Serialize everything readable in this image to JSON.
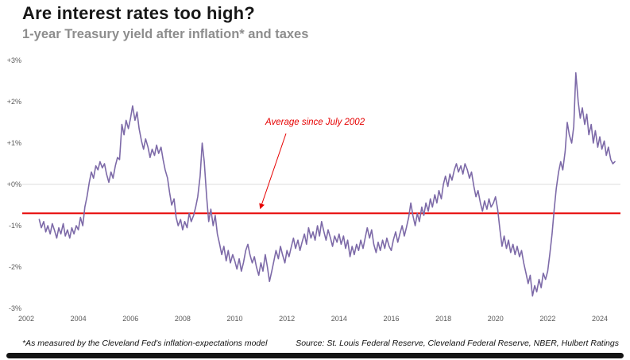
{
  "header": {
    "title": "Are interest rates too high?",
    "subtitle": "1-year Treasury yield after inflation* and taxes"
  },
  "footer": {
    "footnote": "*As measured by the Cleveland Fed's inflation-expectations model",
    "source": "Source: St. Louis Federal Reserve, Cleveland Federal Reserve, NBER, Hulbert Ratings"
  },
  "chart_data": {
    "type": "line",
    "title": "Are interest rates too high?",
    "subtitle": "1-year Treasury yield after inflation* and taxes",
    "xlabel": "",
    "ylabel": "1-year Treasury yield after inflation and taxes (%)",
    "xlim": [
      2002,
      2024
    ],
    "ylim": [
      -3,
      3
    ],
    "grid": "horizontal line at 0% only",
    "legend": "none",
    "colors": {
      "line": "#7d6aa8",
      "average": "#e60000",
      "grid": "#dcdcdc",
      "tick": "#595959"
    },
    "yticks": [
      {
        "value": 3,
        "label": "+3%"
      },
      {
        "value": 2,
        "label": "+2%"
      },
      {
        "value": 1,
        "label": "+1%"
      },
      {
        "value": 0,
        "label": "+0%"
      },
      {
        "value": -1,
        "label": "-1%"
      },
      {
        "value": -2,
        "label": "-2%"
      },
      {
        "value": -3,
        "label": "-3%"
      }
    ],
    "xticks": [
      2002,
      2004,
      2006,
      2008,
      2010,
      2012,
      2014,
      2016,
      2018,
      2020,
      2022,
      2024
    ],
    "average_line": {
      "value": -0.7,
      "label": "Average since July 2002"
    },
    "series": [
      {
        "name": "1-year Treasury yield after inflation and taxes",
        "points": [
          [
            2002.5,
            -0.85
          ],
          [
            2002.58,
            -1.05
          ],
          [
            2002.67,
            -0.9
          ],
          [
            2002.75,
            -1.15
          ],
          [
            2002.83,
            -1.0
          ],
          [
            2002.92,
            -1.2
          ],
          [
            2003.0,
            -0.95
          ],
          [
            2003.08,
            -1.1
          ],
          [
            2003.17,
            -1.3
          ],
          [
            2003.25,
            -1.05
          ],
          [
            2003.33,
            -1.2
          ],
          [
            2003.42,
            -0.95
          ],
          [
            2003.5,
            -1.25
          ],
          [
            2003.58,
            -1.1
          ],
          [
            2003.67,
            -1.3
          ],
          [
            2003.75,
            -1.05
          ],
          [
            2003.83,
            -1.2
          ],
          [
            2003.92,
            -1.0
          ],
          [
            2004.0,
            -1.1
          ],
          [
            2004.08,
            -0.8
          ],
          [
            2004.17,
            -1.0
          ],
          [
            2004.25,
            -0.55
          ],
          [
            2004.33,
            -0.3
          ],
          [
            2004.42,
            0.05
          ],
          [
            2004.5,
            0.3
          ],
          [
            2004.58,
            0.15
          ],
          [
            2004.67,
            0.45
          ],
          [
            2004.75,
            0.35
          ],
          [
            2004.83,
            0.55
          ],
          [
            2004.92,
            0.4
          ],
          [
            2005.0,
            0.5
          ],
          [
            2005.08,
            0.25
          ],
          [
            2005.17,
            0.05
          ],
          [
            2005.25,
            0.3
          ],
          [
            2005.33,
            0.15
          ],
          [
            2005.42,
            0.45
          ],
          [
            2005.5,
            0.65
          ],
          [
            2005.58,
            0.6
          ],
          [
            2005.67,
            1.45
          ],
          [
            2005.75,
            1.2
          ],
          [
            2005.83,
            1.55
          ],
          [
            2005.92,
            1.35
          ],
          [
            2006.0,
            1.6
          ],
          [
            2006.08,
            1.9
          ],
          [
            2006.17,
            1.55
          ],
          [
            2006.25,
            1.75
          ],
          [
            2006.33,
            1.35
          ],
          [
            2006.42,
            1.05
          ],
          [
            2006.5,
            0.85
          ],
          [
            2006.58,
            1.1
          ],
          [
            2006.67,
            0.9
          ],
          [
            2006.75,
            0.65
          ],
          [
            2006.83,
            0.85
          ],
          [
            2006.92,
            0.7
          ],
          [
            2007.0,
            0.95
          ],
          [
            2007.08,
            0.75
          ],
          [
            2007.17,
            0.9
          ],
          [
            2007.25,
            0.6
          ],
          [
            2007.33,
            0.35
          ],
          [
            2007.42,
            0.15
          ],
          [
            2007.5,
            -0.2
          ],
          [
            2007.58,
            -0.5
          ],
          [
            2007.67,
            -0.35
          ],
          [
            2007.75,
            -0.8
          ],
          [
            2007.83,
            -1.0
          ],
          [
            2007.92,
            -0.85
          ],
          [
            2008.0,
            -1.1
          ],
          [
            2008.08,
            -0.9
          ],
          [
            2008.17,
            -1.05
          ],
          [
            2008.25,
            -0.7
          ],
          [
            2008.33,
            -0.9
          ],
          [
            2008.42,
            -0.75
          ],
          [
            2008.5,
            -0.55
          ],
          [
            2008.58,
            -0.3
          ],
          [
            2008.67,
            0.2
          ],
          [
            2008.75,
            1.0
          ],
          [
            2008.83,
            0.55
          ],
          [
            2008.92,
            -0.3
          ],
          [
            2009.0,
            -0.9
          ],
          [
            2009.08,
            -0.6
          ],
          [
            2009.17,
            -1.0
          ],
          [
            2009.25,
            -0.75
          ],
          [
            2009.33,
            -1.2
          ],
          [
            2009.42,
            -1.45
          ],
          [
            2009.5,
            -1.7
          ],
          [
            2009.58,
            -1.5
          ],
          [
            2009.67,
            -1.85
          ],
          [
            2009.75,
            -1.6
          ],
          [
            2009.83,
            -1.9
          ],
          [
            2009.92,
            -1.7
          ],
          [
            2010.0,
            -1.85
          ],
          [
            2010.08,
            -2.05
          ],
          [
            2010.17,
            -1.8
          ],
          [
            2010.25,
            -2.1
          ],
          [
            2010.33,
            -1.9
          ],
          [
            2010.42,
            -1.6
          ],
          [
            2010.5,
            -1.45
          ],
          [
            2010.58,
            -1.7
          ],
          [
            2010.67,
            -1.9
          ],
          [
            2010.75,
            -1.75
          ],
          [
            2010.83,
            -2.0
          ],
          [
            2010.92,
            -2.2
          ],
          [
            2011.0,
            -1.9
          ],
          [
            2011.08,
            -2.1
          ],
          [
            2011.17,
            -1.7
          ],
          [
            2011.25,
            -2.0
          ],
          [
            2011.33,
            -2.35
          ],
          [
            2011.42,
            -2.1
          ],
          [
            2011.5,
            -1.85
          ],
          [
            2011.58,
            -1.6
          ],
          [
            2011.67,
            -1.8
          ],
          [
            2011.75,
            -1.5
          ],
          [
            2011.83,
            -1.7
          ],
          [
            2011.92,
            -1.9
          ],
          [
            2012.0,
            -1.6
          ],
          [
            2012.08,
            -1.75
          ],
          [
            2012.17,
            -1.5
          ],
          [
            2012.25,
            -1.3
          ],
          [
            2012.33,
            -1.55
          ],
          [
            2012.42,
            -1.35
          ],
          [
            2012.5,
            -1.6
          ],
          [
            2012.58,
            -1.4
          ],
          [
            2012.67,
            -1.2
          ],
          [
            2012.75,
            -1.45
          ],
          [
            2012.83,
            -1.05
          ],
          [
            2012.92,
            -1.3
          ],
          [
            2013.0,
            -1.15
          ],
          [
            2013.08,
            -1.35
          ],
          [
            2013.17,
            -1.0
          ],
          [
            2013.25,
            -1.25
          ],
          [
            2013.33,
            -0.9
          ],
          [
            2013.42,
            -1.15
          ],
          [
            2013.5,
            -1.35
          ],
          [
            2013.58,
            -1.1
          ],
          [
            2013.67,
            -1.3
          ],
          [
            2013.75,
            -1.5
          ],
          [
            2013.83,
            -1.25
          ],
          [
            2013.92,
            -1.4
          ],
          [
            2014.0,
            -1.2
          ],
          [
            2014.08,
            -1.45
          ],
          [
            2014.17,
            -1.25
          ],
          [
            2014.25,
            -1.55
          ],
          [
            2014.33,
            -1.35
          ],
          [
            2014.42,
            -1.75
          ],
          [
            2014.5,
            -1.5
          ],
          [
            2014.58,
            -1.7
          ],
          [
            2014.67,
            -1.45
          ],
          [
            2014.75,
            -1.6
          ],
          [
            2014.83,
            -1.35
          ],
          [
            2014.92,
            -1.55
          ],
          [
            2015.0,
            -1.3
          ],
          [
            2015.08,
            -1.05
          ],
          [
            2015.17,
            -1.3
          ],
          [
            2015.25,
            -1.1
          ],
          [
            2015.33,
            -1.45
          ],
          [
            2015.42,
            -1.65
          ],
          [
            2015.5,
            -1.4
          ],
          [
            2015.58,
            -1.6
          ],
          [
            2015.67,
            -1.35
          ],
          [
            2015.75,
            -1.55
          ],
          [
            2015.83,
            -1.3
          ],
          [
            2015.92,
            -1.5
          ],
          [
            2016.0,
            -1.6
          ],
          [
            2016.08,
            -1.35
          ],
          [
            2016.17,
            -1.15
          ],
          [
            2016.25,
            -1.4
          ],
          [
            2016.33,
            -1.2
          ],
          [
            2016.42,
            -1.0
          ],
          [
            2016.5,
            -1.25
          ],
          [
            2016.58,
            -1.05
          ],
          [
            2016.67,
            -0.8
          ],
          [
            2016.75,
            -0.45
          ],
          [
            2016.83,
            -0.75
          ],
          [
            2016.92,
            -1.0
          ],
          [
            2017.0,
            -0.7
          ],
          [
            2017.08,
            -0.9
          ],
          [
            2017.17,
            -0.55
          ],
          [
            2017.25,
            -0.75
          ],
          [
            2017.33,
            -0.45
          ],
          [
            2017.42,
            -0.65
          ],
          [
            2017.5,
            -0.35
          ],
          [
            2017.58,
            -0.55
          ],
          [
            2017.67,
            -0.25
          ],
          [
            2017.75,
            -0.45
          ],
          [
            2017.83,
            -0.15
          ],
          [
            2017.92,
            -0.35
          ],
          [
            2018.0,
            0.0
          ],
          [
            2018.08,
            0.2
          ],
          [
            2018.17,
            -0.05
          ],
          [
            2018.25,
            0.25
          ],
          [
            2018.33,
            0.1
          ],
          [
            2018.42,
            0.35
          ],
          [
            2018.5,
            0.5
          ],
          [
            2018.58,
            0.3
          ],
          [
            2018.67,
            0.45
          ],
          [
            2018.75,
            0.25
          ],
          [
            2018.83,
            0.5
          ],
          [
            2018.92,
            0.35
          ],
          [
            2019.0,
            0.15
          ],
          [
            2019.08,
            0.3
          ],
          [
            2019.17,
            -0.05
          ],
          [
            2019.25,
            -0.3
          ],
          [
            2019.33,
            -0.15
          ],
          [
            2019.42,
            -0.45
          ],
          [
            2019.5,
            -0.65
          ],
          [
            2019.58,
            -0.4
          ],
          [
            2019.67,
            -0.6
          ],
          [
            2019.75,
            -0.35
          ],
          [
            2019.83,
            -0.55
          ],
          [
            2019.92,
            -0.45
          ],
          [
            2020.0,
            -0.3
          ],
          [
            2020.08,
            -0.6
          ],
          [
            2020.17,
            -1.1
          ],
          [
            2020.25,
            -1.5
          ],
          [
            2020.33,
            -1.25
          ],
          [
            2020.42,
            -1.55
          ],
          [
            2020.5,
            -1.35
          ],
          [
            2020.58,
            -1.65
          ],
          [
            2020.67,
            -1.45
          ],
          [
            2020.75,
            -1.7
          ],
          [
            2020.83,
            -1.5
          ],
          [
            2020.92,
            -1.75
          ],
          [
            2021.0,
            -1.6
          ],
          [
            2021.08,
            -1.9
          ],
          [
            2021.17,
            -2.15
          ],
          [
            2021.25,
            -2.4
          ],
          [
            2021.33,
            -2.2
          ],
          [
            2021.42,
            -2.7
          ],
          [
            2021.5,
            -2.45
          ],
          [
            2021.58,
            -2.6
          ],
          [
            2021.67,
            -2.3
          ],
          [
            2021.75,
            -2.5
          ],
          [
            2021.83,
            -2.15
          ],
          [
            2021.92,
            -2.3
          ],
          [
            2022.0,
            -2.1
          ],
          [
            2022.08,
            -1.7
          ],
          [
            2022.17,
            -1.2
          ],
          [
            2022.25,
            -0.6
          ],
          [
            2022.33,
            -0.1
          ],
          [
            2022.42,
            0.3
          ],
          [
            2022.5,
            0.55
          ],
          [
            2022.58,
            0.35
          ],
          [
            2022.67,
            0.8
          ],
          [
            2022.75,
            1.5
          ],
          [
            2022.83,
            1.2
          ],
          [
            2022.92,
            1.0
          ],
          [
            2023.0,
            1.4
          ],
          [
            2023.08,
            2.7
          ],
          [
            2023.17,
            2.0
          ],
          [
            2023.25,
            1.6
          ],
          [
            2023.33,
            1.85
          ],
          [
            2023.42,
            1.45
          ],
          [
            2023.5,
            1.7
          ],
          [
            2023.58,
            1.2
          ],
          [
            2023.67,
            1.45
          ],
          [
            2023.75,
            1.0
          ],
          [
            2023.83,
            1.3
          ],
          [
            2023.92,
            0.9
          ],
          [
            2024.0,
            1.15
          ],
          [
            2024.08,
            0.85
          ],
          [
            2024.17,
            1.05
          ],
          [
            2024.25,
            0.7
          ],
          [
            2024.33,
            0.9
          ],
          [
            2024.42,
            0.6
          ],
          [
            2024.5,
            0.5
          ],
          [
            2024.58,
            0.55
          ]
        ]
      }
    ]
  }
}
